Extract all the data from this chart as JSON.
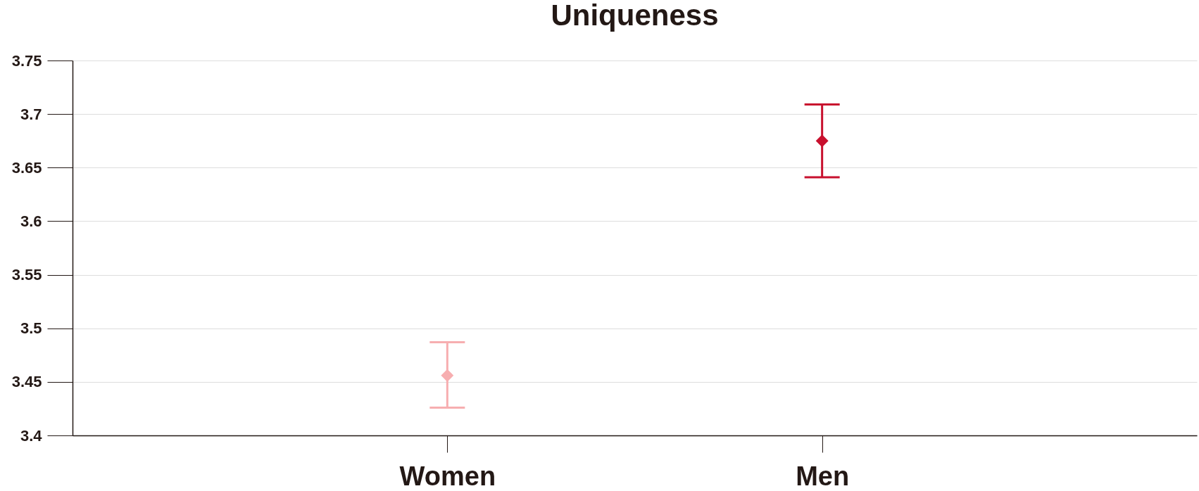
{
  "chart_data": {
    "type": "scatter",
    "title": "Uniqueness",
    "categories": [
      "Women",
      "Men"
    ],
    "values": [
      3.456,
      3.675
    ],
    "errors": [
      [
        3.426,
        3.487
      ],
      [
        3.641,
        3.709
      ]
    ],
    "colors": [
      "#f7aeb0",
      "#c8102e"
    ],
    "ylim": [
      3.4,
      3.75
    ],
    "yticks": [
      3.4,
      3.45,
      3.5,
      3.55,
      3.6,
      3.65,
      3.7,
      3.75
    ],
    "grid": "y",
    "marker": "diamond",
    "legend": false
  }
}
